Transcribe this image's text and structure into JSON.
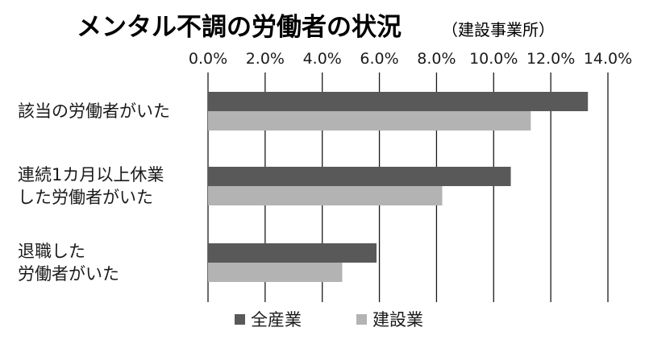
{
  "chart_data": {
    "type": "bar",
    "orientation": "horizontal",
    "title": "メンタル不調の労働者の状況",
    "subtitle": "（建設事業所）",
    "categories": [
      [
        "該当の労働者がいた"
      ],
      [
        "連続1カ月以上休業",
        "した労働者がいた"
      ],
      [
        "退職した",
        "労働者がいた"
      ]
    ],
    "series": [
      {
        "name": "全産業",
        "color": "#595959",
        "values": [
          13.3,
          10.6,
          5.9
        ]
      },
      {
        "name": "建設業",
        "color": "#b3b3b3",
        "values": [
          11.3,
          8.2,
          4.7
        ]
      }
    ],
    "x_ticks": [
      "0.0%",
      "2.0%",
      "4.0%",
      "6.0%",
      "8.0%",
      "10.0%",
      "12.0%",
      "14.0%"
    ],
    "xlim": [
      0,
      14
    ],
    "grid": "vertical",
    "legend_position": "bottom",
    "xlabel": "",
    "ylabel": ""
  }
}
